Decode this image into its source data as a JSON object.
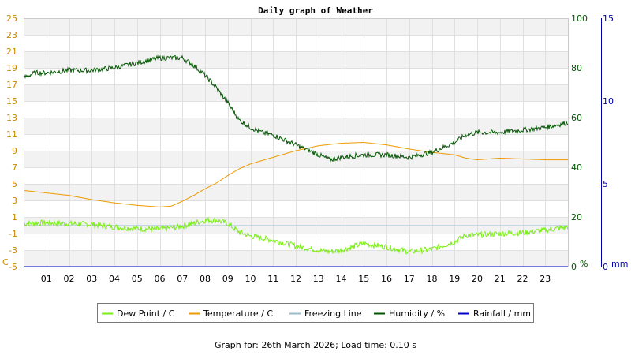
{
  "chart_data": {
    "type": "line",
    "title": "Daily graph of Weather",
    "x_ticks": [
      "01",
      "02",
      "03",
      "04",
      "05",
      "06",
      "07",
      "08",
      "09",
      "10",
      "11",
      "12",
      "13",
      "14",
      "15",
      "16",
      "17",
      "18",
      "19",
      "20",
      "21",
      "22",
      "23"
    ],
    "x_range_hours": [
      0,
      24
    ],
    "left_axis": {
      "ylim": [
        -5,
        25
      ],
      "ticks": [
        25,
        23,
        21,
        19,
        17,
        15,
        13,
        11,
        9,
        7,
        5,
        3,
        1,
        -1,
        -3,
        -5
      ],
      "unit_label": "C",
      "color": "#cc8800"
    },
    "right_axis_1": {
      "ylim": [
        0,
        100
      ],
      "ticks": [
        100,
        80,
        60,
        40,
        20,
        0
      ],
      "unit_label": "%",
      "color": "#005500"
    },
    "right_axis_2": {
      "ylim": [
        0,
        15
      ],
      "ticks": [
        15,
        10,
        5,
        0
      ],
      "unit_label": "mm",
      "color": "#0000aa"
    },
    "series": [
      {
        "name": "Dew Point / C",
        "color": "#77ee11",
        "axis": "left",
        "noise": 0.35,
        "x": [
          0,
          1,
          2,
          3,
          4,
          5,
          6,
          7,
          8,
          8.5,
          9,
          9.5,
          10,
          11,
          12,
          13,
          13.5,
          14,
          15,
          16,
          17,
          18,
          19,
          19.5,
          20,
          21,
          22,
          23,
          24
        ],
        "y": [
          0.2,
          0.3,
          0.2,
          0.1,
          -0.2,
          -0.4,
          -0.5,
          -0.1,
          0.6,
          0.6,
          0.2,
          -0.8,
          -1.3,
          -1.8,
          -2.5,
          -3.0,
          -3.2,
          -3.0,
          -2.2,
          -2.6,
          -3.2,
          -2.9,
          -2.0,
          -1.2,
          -1.2,
          -1.0,
          -0.9,
          -0.6,
          -0.2
        ]
      },
      {
        "name": "Temperature / C",
        "color": "#ee9900",
        "axis": "left",
        "noise": 0,
        "x": [
          0,
          1,
          2,
          3,
          4,
          5,
          6,
          6.5,
          7,
          7.5,
          8,
          8.5,
          9,
          9.5,
          10,
          11,
          11.5,
          12,
          13,
          14,
          15,
          16,
          17,
          18,
          19,
          19.5,
          20,
          21,
          22,
          23,
          24
        ],
        "y": [
          4.2,
          3.9,
          3.6,
          3.1,
          2.7,
          2.4,
          2.2,
          2.3,
          2.9,
          3.6,
          4.4,
          5.1,
          6.0,
          6.8,
          7.4,
          8.2,
          8.6,
          9.0,
          9.6,
          9.9,
          10.0,
          9.7,
          9.2,
          8.8,
          8.5,
          8.1,
          7.9,
          8.1,
          8.0,
          7.9,
          7.9
        ]
      },
      {
        "name": "Freezing Line",
        "color": "#99bbcc",
        "axis": "left",
        "noise": 0,
        "x": [
          0,
          24
        ],
        "y": [
          0,
          0
        ]
      },
      {
        "name": "Humidity / %",
        "color": "#005500",
        "axis": "right1",
        "noise": 1.0,
        "x": [
          0,
          0.5,
          1,
          2,
          3,
          4,
          5,
          6,
          7,
          7.5,
          8,
          8.5,
          9,
          9.5,
          10,
          10.5,
          11,
          12,
          13,
          13.5,
          14,
          15,
          16,
          17,
          18,
          19,
          19.5,
          20,
          21,
          22,
          23,
          24
        ],
        "y": [
          76,
          78,
          78,
          79,
          79,
          80,
          82,
          84,
          84,
          81,
          77,
          72,
          66,
          59,
          56,
          54,
          53,
          49,
          45,
          43,
          44,
          45,
          45,
          44,
          46,
          50,
          53,
          54,
          54,
          55,
          56,
          58
        ]
      },
      {
        "name": "Rainfall / mm",
        "color": "#0000cc",
        "axis": "right2",
        "noise": 0,
        "x": [
          0,
          24
        ],
        "y": [
          0,
          0
        ]
      }
    ],
    "legend_position": "bottom",
    "grid": true
  },
  "footer": "Graph for: 26th March 2026; Load time: 0.10 s"
}
